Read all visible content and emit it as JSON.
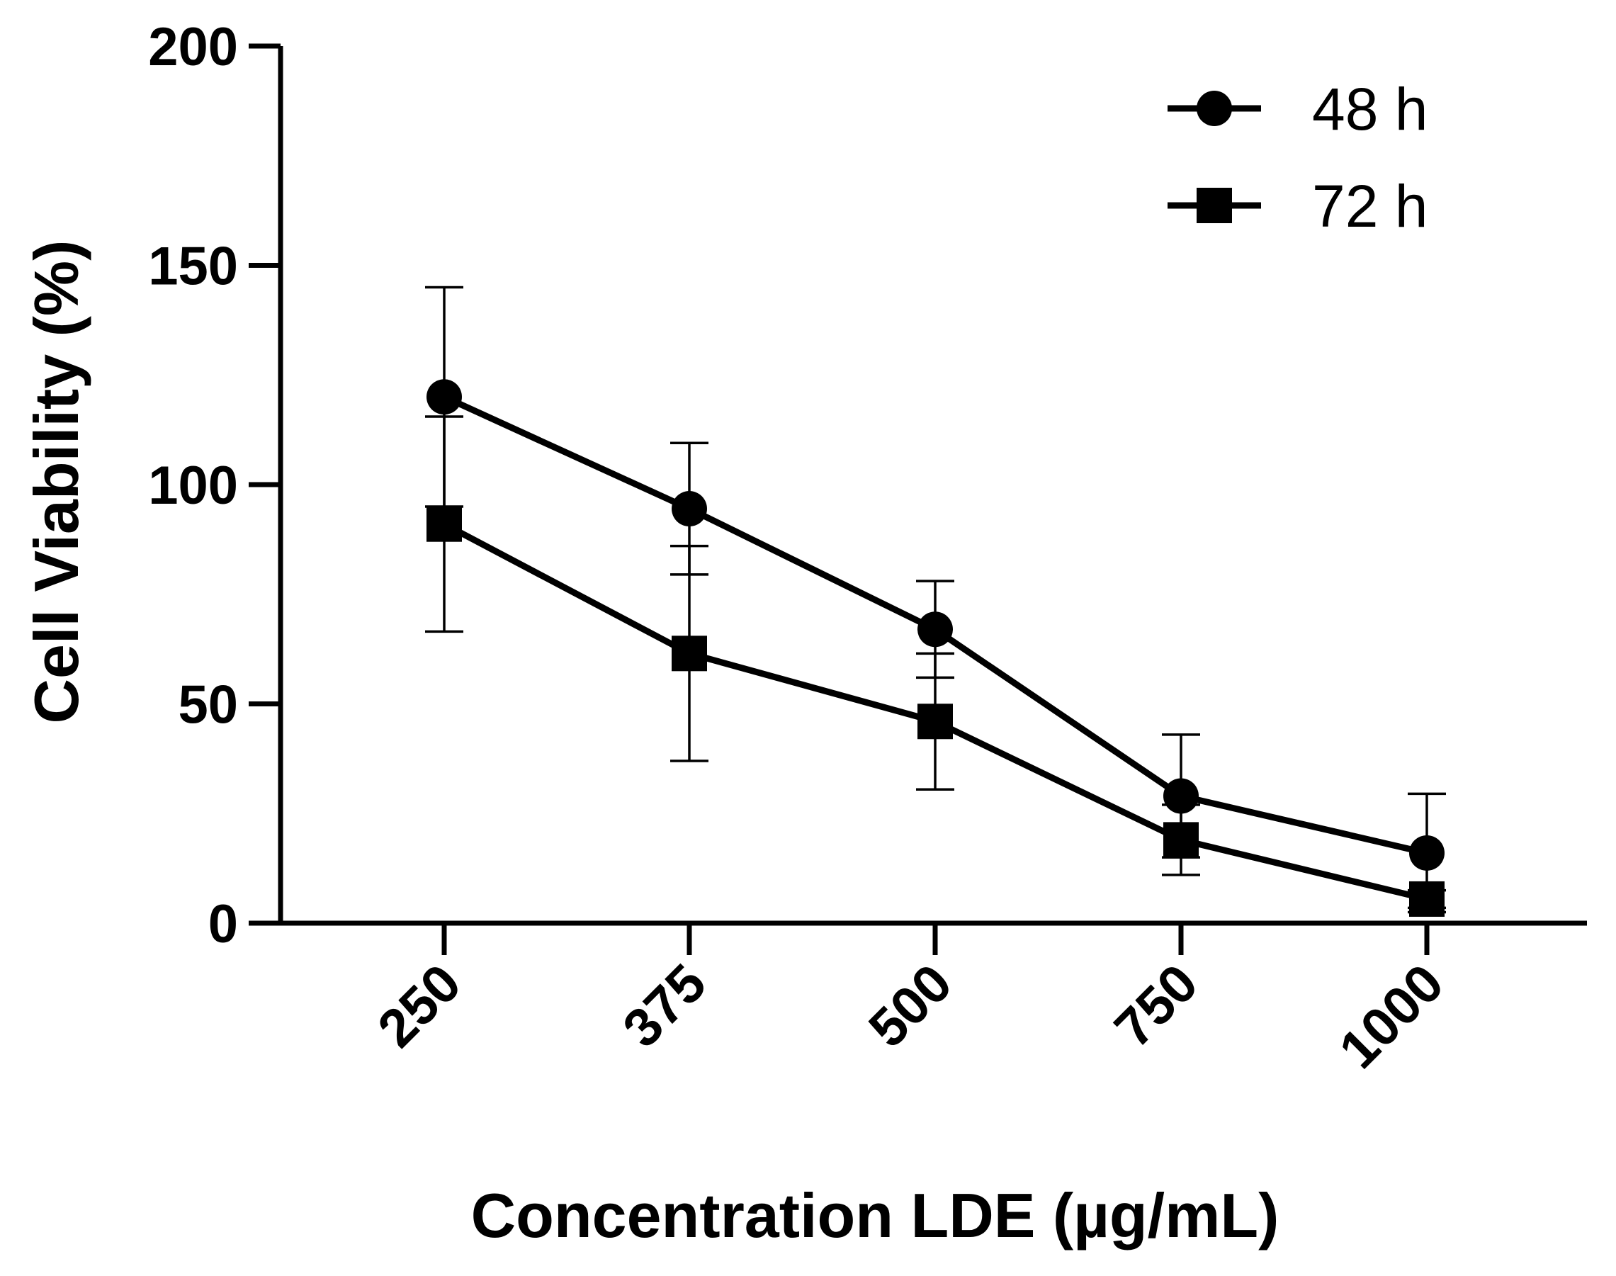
{
  "chart_data": {
    "type": "line",
    "title": "",
    "xlabel": "Concentration LDE (µg/mL)",
    "ylabel": "Cell Viability (%)",
    "categories": [
      "250",
      "375",
      "500",
      "750",
      "1000"
    ],
    "ylim": [
      0,
      200
    ],
    "yticks": [
      "0",
      "50",
      "100",
      "150",
      "200"
    ],
    "grid": false,
    "legend_position": "top-right",
    "series": [
      {
        "name": "48 h",
        "marker": "circle",
        "color": "#000000",
        "values": [
          120,
          94.5,
          67,
          29,
          16
        ],
        "error": [
          25,
          15,
          11,
          14,
          13.5
        ]
      },
      {
        "name": "72 h",
        "marker": "square",
        "color": "#000000",
        "values": [
          91,
          61.5,
          46,
          19,
          5.5
        ],
        "error": [
          24.5,
          24.5,
          15.5,
          8,
          2
        ]
      }
    ]
  }
}
